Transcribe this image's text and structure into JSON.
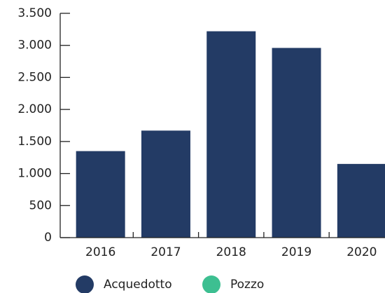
{
  "chart_data": {
    "type": "bar",
    "stacked": true,
    "categories": [
      "2016",
      "2017",
      "2018",
      "2019",
      "2020"
    ],
    "series": [
      {
        "name": "Acquedotto",
        "color": "#233b65",
        "values": [
          1350,
          1670,
          3220,
          2960,
          1150
        ]
      },
      {
        "name": "Pozzo",
        "color": "#3dbf91",
        "values": [
          0,
          0,
          0,
          0,
          0
        ]
      }
    ],
    "ylim": [
      0,
      3500
    ],
    "yticks": [
      0,
      500,
      {
        "value": 1000,
        "label": "1.000"
      },
      {
        "value": 1500,
        "label": "1.500"
      },
      {
        "value": 2000,
        "label": "2.000"
      },
      {
        "value": 2500,
        "label": "2.500"
      },
      {
        "value": 3000,
        "label": "3.000"
      },
      {
        "value": 3500,
        "label": "3.500"
      }
    ],
    "legend": "bottom"
  }
}
